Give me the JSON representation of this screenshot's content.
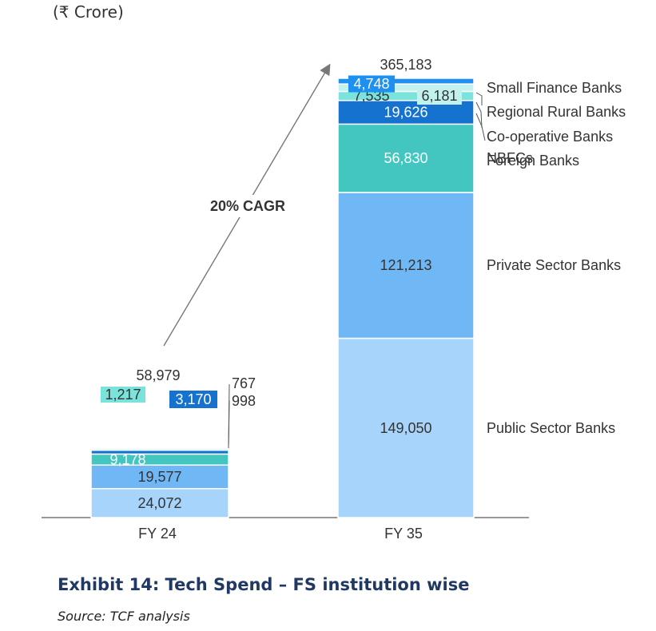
{
  "unit_label": "(₹ Crore)",
  "caption": {
    "title": "Exhibit 14: Tech Spend – FS institution wise",
    "source": "Source: TCF analysis"
  },
  "chart_data": {
    "type": "bar",
    "stacked": true,
    "title": "Exhibit 14: Tech Spend – FS institution wise",
    "ylabel": "(₹ Crore)",
    "categories": [
      "FY 24",
      "FY 35"
    ],
    "totals": [
      "58,979",
      "365,183"
    ],
    "annotation": "20% CAGR",
    "series": [
      {
        "name": "Public Sector Banks",
        "values": [
          24072,
          149050
        ],
        "labels": [
          "24,072",
          "149,050"
        ],
        "color": "#a6d4fa"
      },
      {
        "name": "Private Sector Banks",
        "values": [
          19577,
          121213
        ],
        "labels": [
          "19,577",
          "121,213"
        ],
        "color": "#6fb8f5"
      },
      {
        "name": "NBFCs",
        "values": [
          9178,
          56830
        ],
        "labels": [
          "9,178",
          "56,830"
        ],
        "color": "#43c6c0"
      },
      {
        "name": "Foreign Banks",
        "values": [
          3170,
          19626
        ],
        "labels": [
          "3,170",
          "19,626"
        ],
        "color": "#1573cf"
      },
      {
        "name": "Co-operative Banks",
        "values": [
          1217,
          7535
        ],
        "labels": [
          "1,217",
          "7,535"
        ],
        "color": "#79e3dc"
      },
      {
        "name": "Regional Rural Banks",
        "values": [
          998,
          6181
        ],
        "labels": [
          "998",
          "6,181"
        ],
        "color": "#c2f2ee"
      },
      {
        "name": "Small Finance Banks",
        "values": [
          767,
          4748
        ],
        "labels": [
          "767",
          "4,748"
        ],
        "color": "#1e90f0"
      }
    ],
    "ylim": [
      0,
      365183
    ],
    "grid": false,
    "legend": "right-inline"
  }
}
